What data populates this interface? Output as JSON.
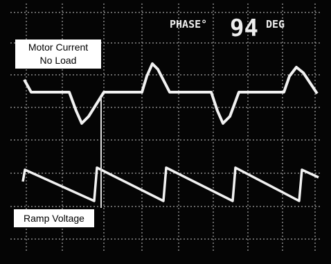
{
  "readout": {
    "label": "PHASE°",
    "value": 94,
    "unit": "DEG"
  },
  "traces": {
    "motor_current": {
      "line1": "Motor Current",
      "line2": "No Load"
    },
    "ramp_voltage": {
      "label": "Ramp Voltage"
    }
  }
}
